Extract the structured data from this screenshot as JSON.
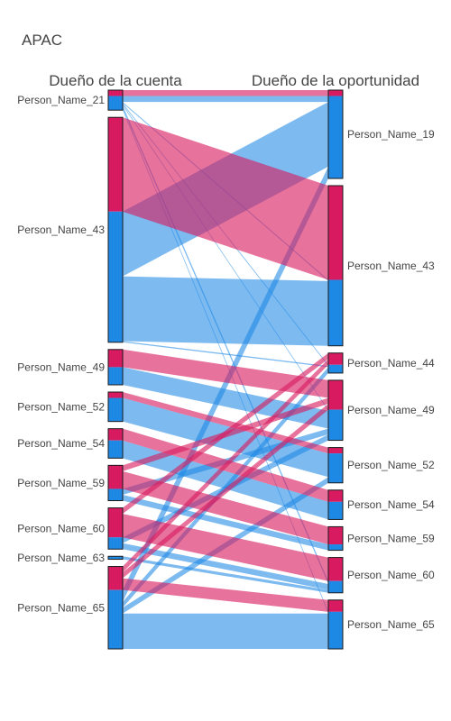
{
  "colors": {
    "pink": "#d81b60",
    "blue": "#1e88e5",
    "pink_ribbon": "rgba(216,27,96,0.62)",
    "blue_ribbon": "rgba(30,136,229,0.58)",
    "bar_border": "#1a1a1a"
  },
  "chart_data": {
    "type": "parallel_categories",
    "title": "APAC",
    "dimensions": [
      {
        "label": "Dueño de la cuenta",
        "categories": [
          "Person_Name_21",
          "Person_Name_43",
          "Person_Name_49",
          "Person_Name_52",
          "Person_Name_54",
          "Person_Name_59",
          "Person_Name_60",
          "Person_Name_63",
          "Person_Name_65"
        ]
      },
      {
        "label": "Dueño de la oportunidad",
        "categories": [
          "Person_Name_19",
          "Person_Name_43",
          "Person_Name_44",
          "Person_Name_49",
          "Person_Name_52",
          "Person_Name_54",
          "Person_Name_59",
          "Person_Name_60",
          "Person_Name_65"
        ]
      }
    ],
    "color_groups": [
      "pink",
      "blue"
    ],
    "flows": [
      {
        "from": "Person_Name_21",
        "to": "Person_Name_19",
        "color": "pink",
        "count": 1
      },
      {
        "from": "Person_Name_21",
        "to": "Person_Name_19",
        "color": "blue",
        "count": 1
      },
      {
        "from": "Person_Name_21",
        "to": "Person_Name_43",
        "color": "blue",
        "count": 0.2
      },
      {
        "from": "Person_Name_21",
        "to": "Person_Name_44",
        "color": "blue",
        "count": 0.2
      },
      {
        "from": "Person_Name_21",
        "to": "Person_Name_49",
        "color": "blue",
        "count": 0.2
      },
      {
        "from": "Person_Name_21",
        "to": "Person_Name_60",
        "color": "blue",
        "count": 0.5
      },
      {
        "from": "Person_Name_21",
        "to": "Person_Name_65",
        "color": "blue",
        "count": 0.3
      },
      {
        "from": "Person_Name_43",
        "to": "Person_Name_43",
        "color": "pink",
        "count": 16
      },
      {
        "from": "Person_Name_43",
        "to": "Person_Name_19",
        "color": "blue",
        "count": 11
      },
      {
        "from": "Person_Name_43",
        "to": "Person_Name_43",
        "color": "blue",
        "count": 11
      },
      {
        "from": "Person_Name_43",
        "to": "Person_Name_44",
        "color": "blue",
        "count": 0.2
      },
      {
        "from": "Person_Name_49",
        "to": "Person_Name_49",
        "color": "pink",
        "count": 3
      },
      {
        "from": "Person_Name_49",
        "to": "Person_Name_49",
        "color": "blue",
        "count": 3
      },
      {
        "from": "Person_Name_52",
        "to": "Person_Name_52",
        "color": "pink",
        "count": 1
      },
      {
        "from": "Person_Name_52",
        "to": "Person_Name_52",
        "color": "blue",
        "count": 4
      },
      {
        "from": "Person_Name_54",
        "to": "Person_Name_54",
        "color": "pink",
        "count": 2
      },
      {
        "from": "Person_Name_54",
        "to": "Person_Name_54",
        "color": "blue",
        "count": 3
      },
      {
        "from": "Person_Name_59",
        "to": "Person_Name_59",
        "color": "pink",
        "count": 3
      },
      {
        "from": "Person_Name_59",
        "to": "Person_Name_49",
        "color": "pink",
        "count": 1
      },
      {
        "from": "Person_Name_59",
        "to": "Person_Name_59",
        "color": "blue",
        "count": 1
      },
      {
        "from": "Person_Name_59",
        "to": "Person_Name_49",
        "color": "blue",
        "count": 1
      },
      {
        "from": "Person_Name_60",
        "to": "Person_Name_60",
        "color": "pink",
        "count": 4
      },
      {
        "from": "Person_Name_60",
        "to": "Person_Name_44",
        "color": "pink",
        "count": 1
      },
      {
        "from": "Person_Name_60",
        "to": "Person_Name_60",
        "color": "blue",
        "count": 1
      },
      {
        "from": "Person_Name_60",
        "to": "Person_Name_49",
        "color": "blue",
        "count": 1
      },
      {
        "from": "Person_Name_63",
        "to": "Person_Name_60",
        "color": "blue",
        "count": 0.5
      },
      {
        "from": "Person_Name_65",
        "to": "Person_Name_65",
        "color": "pink",
        "count": 2
      },
      {
        "from": "Person_Name_65",
        "to": "Person_Name_49",
        "color": "pink",
        "count": 1
      },
      {
        "from": "Person_Name_65",
        "to": "Person_Name_44",
        "color": "pink",
        "count": 1
      },
      {
        "from": "Person_Name_65",
        "to": "Person_Name_19",
        "color": "blue",
        "count": 2
      },
      {
        "from": "Person_Name_65",
        "to": "Person_Name_65",
        "color": "blue",
        "count": 6
      },
      {
        "from": "Person_Name_65",
        "to": "Person_Name_44",
        "color": "blue",
        "count": 1
      },
      {
        "from": "Person_Name_65",
        "to": "Person_Name_52",
        "color": "blue",
        "count": 1
      }
    ]
  }
}
